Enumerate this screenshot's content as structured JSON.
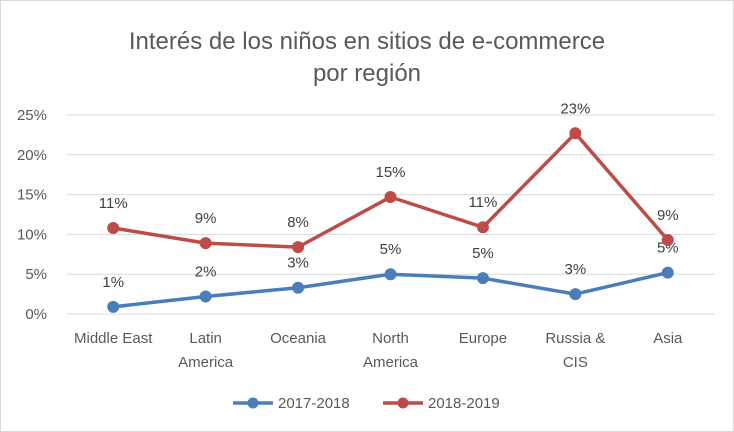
{
  "chart_data": {
    "type": "line",
    "title": [
      "Interés de los niños en sitios de e-commerce",
      "por región"
    ],
    "categories": [
      [
        "Middle East"
      ],
      [
        "Latin",
        "America"
      ],
      [
        "Oceania"
      ],
      [
        "North",
        "America"
      ],
      [
        "Europe"
      ],
      [
        "Russia &",
        "CIS"
      ],
      [
        "Asia"
      ]
    ],
    "y_ticks": [
      0,
      5,
      10,
      15,
      20,
      25
    ],
    "y_tick_labels": [
      "0%",
      "5%",
      "10%",
      "15%",
      "20%",
      "25%"
    ],
    "ylim": [
      0,
      25
    ],
    "grid": true,
    "legend_position": "bottom",
    "series": [
      {
        "name": "2017-2018",
        "color": "#4a7ebb",
        "values": [
          0.9,
          2.2,
          3.3,
          5.0,
          4.5,
          2.5,
          5.2
        ],
        "labels": [
          "1%",
          "2%",
          "3%",
          "5%",
          "5%",
          "3%",
          "5%"
        ]
      },
      {
        "name": "2018-2019",
        "color": "#be4b48",
        "values": [
          10.8,
          8.9,
          8.4,
          14.7,
          10.9,
          22.7,
          9.3
        ],
        "labels": [
          "11%",
          "9%",
          "8%",
          "15%",
          "11%",
          "23%",
          "9%"
        ]
      }
    ]
  }
}
